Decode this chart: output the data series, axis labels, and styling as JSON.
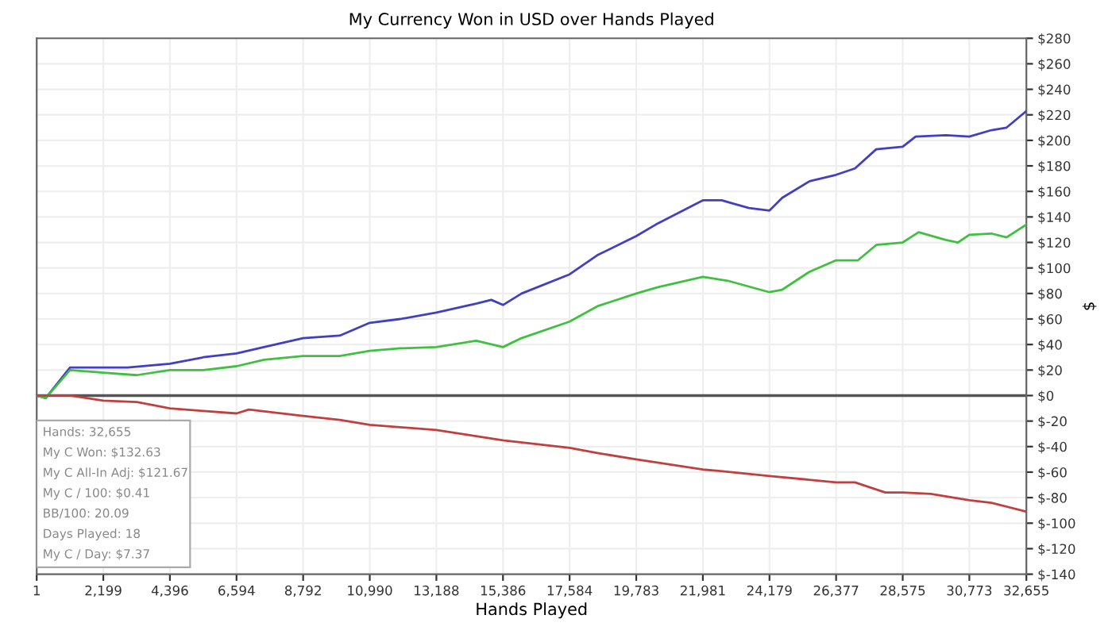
{
  "chart_data": {
    "type": "line",
    "title": "My Currency Won in USD over Hands Played",
    "xlabel": "Hands Played",
    "ylabel": "$",
    "xlim": [
      1,
      32655
    ],
    "xticks": [
      1,
      {
        "value": 2199,
        "label": "2,199"
      },
      {
        "value": 4396,
        "label": "4,396"
      },
      {
        "value": 6594,
        "label": "6,594"
      },
      {
        "value": 8792,
        "label": "8,792"
      },
      {
        "value": 10990,
        "label": "10,990"
      },
      {
        "value": 13188,
        "label": "13,188"
      },
      {
        "value": 15386,
        "label": "15,386"
      },
      {
        "value": 17584,
        "label": "17,584"
      },
      {
        "value": 19783,
        "label": "19,783"
      },
      {
        "value": 21981,
        "label": "21,981"
      },
      {
        "value": 24179,
        "label": "24,179"
      },
      {
        "value": 26377,
        "label": "26,377"
      },
      {
        "value": 28575,
        "label": "28,575"
      },
      {
        "value": 30773,
        "label": "30,773"
      },
      {
        "value": 32655,
        "label": "32,655"
      }
    ],
    "ylim": [
      -140,
      280
    ],
    "yticks": [
      {
        "value": -140,
        "label": "$-140"
      },
      {
        "value": -120,
        "label": "$-120"
      },
      {
        "value": -100,
        "label": "$-100"
      },
      {
        "value": -80,
        "label": "$-80"
      },
      {
        "value": -60,
        "label": "$-60"
      },
      {
        "value": -40,
        "label": "$-40"
      },
      {
        "value": -20,
        "label": "$-20"
      },
      {
        "value": 0,
        "label": "$0"
      },
      {
        "value": 20,
        "label": "$20"
      },
      {
        "value": 40,
        "label": "$40"
      },
      {
        "value": 60,
        "label": "$60"
      },
      {
        "value": 80,
        "label": "$80"
      },
      {
        "value": 100,
        "label": "$100"
      },
      {
        "value": 120,
        "label": "$120"
      },
      {
        "value": 140,
        "label": "$140"
      },
      {
        "value": 160,
        "label": "$160"
      },
      {
        "value": 180,
        "label": "$180"
      },
      {
        "value": 200,
        "label": "$200"
      },
      {
        "value": 220,
        "label": "$220"
      },
      {
        "value": 240,
        "label": "$240"
      },
      {
        "value": 260,
        "label": "$260"
      },
      {
        "value": 280,
        "label": "$280"
      }
    ],
    "grid": true,
    "marker": "none",
    "line_style": "solid",
    "ref_lines": [
      {
        "axis": "y",
        "value": 0,
        "color": "#555555"
      }
    ],
    "series": [
      {
        "color": "#4040c0",
        "x": [
          1,
          300,
          1100,
          2199,
          3000,
          4396,
          5500,
          6594,
          7500,
          8792,
          10000,
          10990,
          12000,
          13188,
          14500,
          15000,
          15386,
          16000,
          17584,
          18500,
          19783,
          20500,
          21981,
          22600,
          23500,
          24179,
          24600,
          25500,
          26377,
          27000,
          27700,
          28575,
          29000,
          30000,
          30773,
          31500,
          32000,
          32655
        ],
        "values": [
          0,
          -2,
          22,
          22,
          22,
          25,
          30,
          33,
          38,
          45,
          47,
          57,
          60,
          65,
          72,
          75,
          71,
          80,
          95,
          110,
          125,
          135,
          153,
          153,
          147,
          145,
          155,
          168,
          173,
          178,
          193,
          195,
          203,
          204,
          203,
          208,
          210,
          223
        ]
      },
      {
        "color": "#40c040",
        "x": [
          1,
          300,
          1100,
          2199,
          3300,
          4396,
          5500,
          6594,
          7500,
          8792,
          10000,
          10990,
          12000,
          13188,
          14500,
          15386,
          16000,
          17584,
          18500,
          19783,
          20500,
          21981,
          22800,
          24179,
          24600,
          25500,
          26377,
          27100,
          27700,
          28575,
          29100,
          30000,
          30400,
          30773,
          31500,
          32000,
          32655
        ],
        "values": [
          0,
          -2,
          20,
          18,
          16,
          20,
          20,
          23,
          28,
          31,
          31,
          35,
          37,
          38,
          43,
          38,
          45,
          58,
          70,
          80,
          85,
          93,
          90,
          81,
          83,
          97,
          106,
          106,
          118,
          120,
          128,
          122,
          120,
          126,
          127,
          124,
          134
        ]
      },
      {
        "color": "#c04040",
        "x": [
          1,
          1100,
          2199,
          3300,
          4396,
          5500,
          6594,
          7000,
          8792,
          10000,
          10990,
          13188,
          15386,
          17584,
          18500,
          19783,
          21981,
          22500,
          24179,
          26377,
          27000,
          28000,
          28575,
          29500,
          30773,
          31500,
          32655
        ],
        "values": [
          0,
          0,
          -4,
          -5,
          -10,
          -12,
          -14,
          -11,
          -16,
          -19,
          -23,
          -27,
          -35,
          -41,
          -45,
          -50,
          -58,
          -59,
          -63,
          -68,
          -68,
          -76,
          -76,
          -77,
          -82,
          -84,
          -91
        ]
      }
    ],
    "annotations": [
      "Hands: 32,655",
      "My C Won: $132.63",
      "My C All-In Adj: $121.67",
      "My C / 100: $0.41",
      "BB/100: 20.09",
      "Days Played: 18",
      "My C / Day: $7.37"
    ]
  }
}
